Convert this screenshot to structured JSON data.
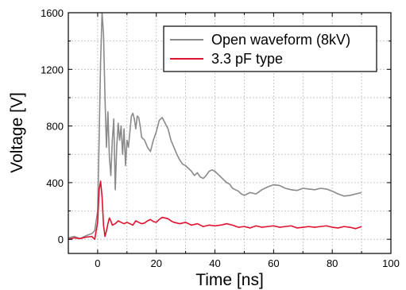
{
  "chart_data": {
    "type": "line",
    "xlabel": "Time [ns]",
    "ylabel": "Voltage [V]",
    "xlim": [
      -10,
      100
    ],
    "ylim": [
      -100,
      1600
    ],
    "xticks": [
      0,
      20,
      40,
      60,
      80,
      100
    ],
    "yticks": [
      0,
      400,
      800,
      1200,
      1600
    ],
    "grid": true,
    "legend_position": "top-right",
    "series": [
      {
        "name": "Open waveform (8kV)",
        "color": "#8a8a8a",
        "x": [
          -10,
          -8,
          -6,
          -4,
          -2,
          -1,
          0,
          0.5,
          1,
          1.5,
          2,
          2.5,
          3,
          3.5,
          4,
          4.5,
          5,
          5.5,
          6,
          6.5,
          7,
          7.5,
          8,
          8.5,
          9,
          9.5,
          10,
          10.5,
          11,
          11.5,
          12,
          12.5,
          13,
          13.5,
          14,
          14.5,
          15,
          16,
          17,
          18,
          19,
          20,
          21,
          22,
          23,
          24,
          25,
          26,
          27,
          28,
          29,
          30,
          31,
          32,
          33,
          34,
          35,
          36,
          37,
          38,
          39,
          40,
          41,
          42,
          43,
          44,
          45,
          46,
          47,
          48,
          49,
          50,
          52,
          54,
          56,
          58,
          60,
          62,
          64,
          66,
          68,
          70,
          72,
          74,
          76,
          78,
          80,
          82,
          84,
          86,
          88,
          90
        ],
        "y": [
          10,
          20,
          5,
          25,
          40,
          60,
          200,
          700,
          1250,
          1600,
          1450,
          1000,
          650,
          900,
          580,
          450,
          700,
          850,
          350,
          650,
          820,
          700,
          800,
          600,
          780,
          520,
          700,
          650,
          760,
          870,
          890,
          850,
          780,
          870,
          860,
          800,
          720,
          700,
          650,
          620,
          700,
          760,
          840,
          860,
          820,
          780,
          700,
          650,
          600,
          560,
          530,
          520,
          500,
          480,
          450,
          470,
          440,
          430,
          450,
          480,
          490,
          480,
          460,
          440,
          420,
          400,
          390,
          360,
          350,
          340,
          320,
          310,
          330,
          320,
          350,
          370,
          385,
          380,
          360,
          350,
          345,
          360,
          355,
          350,
          360,
          355,
          340,
          320,
          305,
          310,
          320,
          330
        ]
      },
      {
        "name": "3.3 pF type",
        "color": "#e0102e",
        "x": [
          -10,
          -8,
          -6,
          -4,
          -2,
          -1,
          0,
          0.5,
          1,
          1.5,
          2,
          2.5,
          3,
          3.5,
          4,
          4.5,
          5,
          6,
          7,
          8,
          9,
          10,
          11,
          12,
          13,
          14,
          15,
          16,
          17,
          18,
          19,
          20,
          21,
          22,
          23,
          24,
          25,
          26,
          28,
          30,
          32,
          34,
          36,
          38,
          40,
          42,
          44,
          46,
          48,
          50,
          52,
          54,
          56,
          58,
          60,
          62,
          64,
          66,
          68,
          70,
          72,
          74,
          76,
          78,
          80,
          82,
          84,
          86,
          88,
          90
        ],
        "y": [
          0,
          10,
          5,
          15,
          20,
          0,
          120,
          350,
          410,
          300,
          100,
          20,
          60,
          110,
          150,
          130,
          100,
          110,
          130,
          120,
          110,
          120,
          110,
          100,
          130,
          120,
          110,
          115,
          130,
          140,
          125,
          120,
          140,
          155,
          150,
          145,
          130,
          120,
          110,
          120,
          100,
          110,
          90,
          100,
          95,
          100,
          110,
          100,
          85,
          90,
          80,
          95,
          85,
          90,
          95,
          85,
          90,
          95,
          80,
          85,
          90,
          85,
          90,
          95,
          85,
          80,
          90,
          85,
          75,
          90
        ]
      }
    ]
  }
}
